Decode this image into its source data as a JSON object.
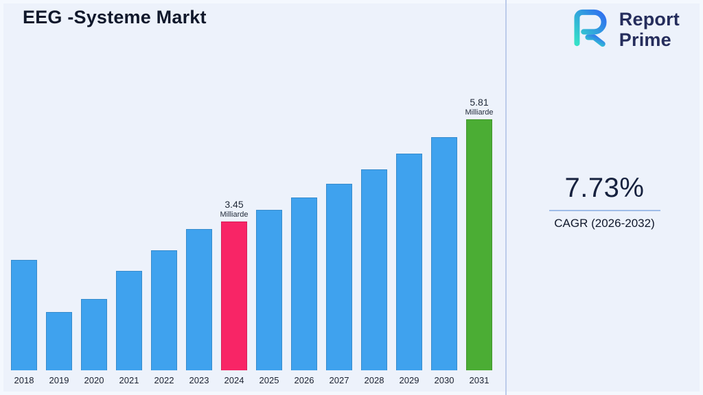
{
  "title": "EEG -Systeme Markt",
  "logo": {
    "line1": "Report",
    "line2": "Prime"
  },
  "stats": {
    "cagr_value": "7.73%",
    "cagr_label": "CAGR (2026-2032)"
  },
  "chart_data": {
    "type": "bar",
    "title": "EEG -Systeme Markt",
    "categories": [
      "2018",
      "2019",
      "2020",
      "2021",
      "2022",
      "2023",
      "2024",
      "2025",
      "2026",
      "2027",
      "2028",
      "2029",
      "2030",
      "2031"
    ],
    "values": [
      2.55,
      1.35,
      1.65,
      2.3,
      2.78,
      3.27,
      3.45,
      3.72,
      4.0,
      4.31,
      4.65,
      5.01,
      5.39,
      5.81
    ],
    "unit": "Milliarde",
    "xlabel": "",
    "ylabel": "",
    "ylim": [
      0,
      6.2
    ],
    "grid": false,
    "legend": "none",
    "annotations": [
      {
        "category": "2024",
        "value_label": "3.45",
        "unit_label": "Milliarde"
      },
      {
        "category": "2031",
        "value_label": "5.81",
        "unit_label": "Milliarde"
      }
    ],
    "colors": {
      "default": "#3FA2EE",
      "2024": "#F82566",
      "2031": "#4BAD34"
    }
  }
}
